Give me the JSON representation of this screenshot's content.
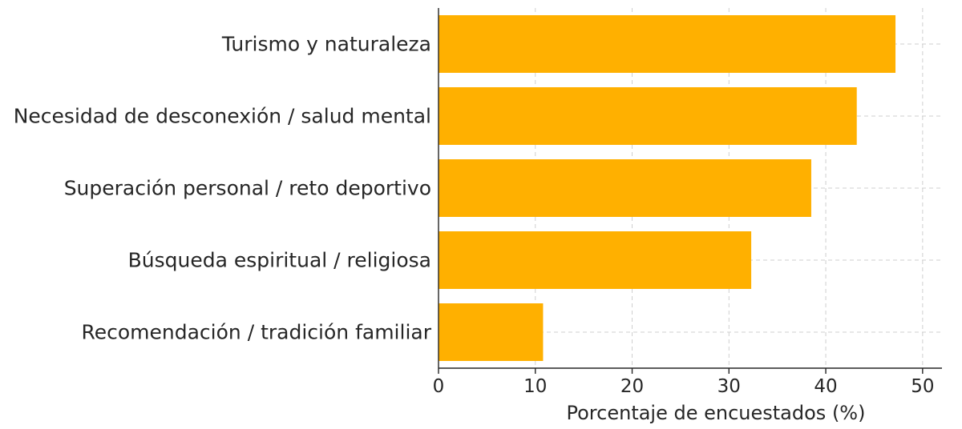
{
  "chart_data": {
    "type": "bar",
    "orientation": "horizontal",
    "categories": [
      "Turismo y naturaleza",
      "Necesidad de desconexión / salud mental",
      "Superación personal / reto deportivo",
      "Búsqueda espiritual / religiosa",
      "Recomendación / tradición familiar"
    ],
    "values": [
      47.2,
      43.2,
      38.5,
      32.3,
      10.8
    ],
    "xlabel": "Porcentaje de encuestados (%)",
    "ylabel": "",
    "xlim": [
      0,
      52
    ],
    "xticks": [
      0,
      10,
      20,
      30,
      40,
      50
    ],
    "grid": true,
    "bar_color": "#FFB000"
  }
}
